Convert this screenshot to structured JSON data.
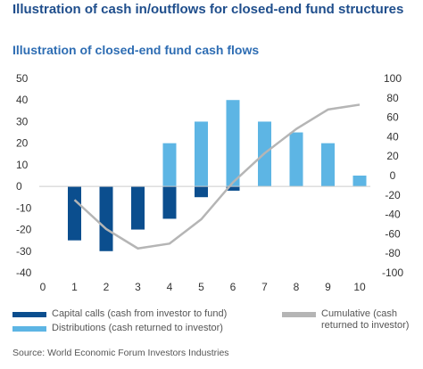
{
  "title": "Illustration of cash in/outflows for closed-end fund structures",
  "subtitle": "Illustration of closed-end fund cash flows",
  "colors": {
    "capital_calls": "#0b4e8e",
    "distributions": "#5db5e4",
    "cumulative": "#b5b5b5",
    "text": "#333333",
    "title": "#1f4e8c",
    "subtitle": "#2e6db3"
  },
  "legend": {
    "capital_calls": "Capital calls (cash from investor to fund)",
    "distributions": "Distributions (cash returned to investor)",
    "cumulative": "Cumulative (cash returned to investor)"
  },
  "source": "Source: World Economic Forum Investors Industries",
  "chart_data": {
    "type": "bar",
    "x": [
      1,
      2,
      3,
      4,
      5,
      6,
      7,
      8,
      9,
      10
    ],
    "x_ticks": [
      "0",
      "1",
      "2",
      "3",
      "4",
      "5",
      "6",
      "7",
      "8",
      "9",
      "10"
    ],
    "xlim": [
      0,
      10
    ],
    "ylim_left": [
      -40,
      50
    ],
    "ylim_right": [
      -100,
      100
    ],
    "left_ticks": [
      50,
      40,
      30,
      20,
      10,
      0,
      -10,
      -20,
      -30,
      -40
    ],
    "right_ticks": [
      100,
      80,
      60,
      40,
      20,
      0,
      -20,
      -40,
      -60,
      -80,
      -100
    ],
    "grid": false,
    "legend_position": "bottom",
    "series": [
      {
        "name": "Capital calls (cash from investor to fund)",
        "type": "bar",
        "axis": "left",
        "values": [
          -25,
          -30,
          -20,
          -15,
          -5,
          -2,
          0,
          0,
          0,
          0
        ]
      },
      {
        "name": "Distributions (cash returned to investor)",
        "type": "bar",
        "axis": "left",
        "values": [
          0,
          0,
          0,
          20,
          30,
          40,
          30,
          25,
          20,
          5
        ]
      },
      {
        "name": "Cumulative (cash returned to investor)",
        "type": "line",
        "axis": "right",
        "values": [
          -25,
          -55,
          -75,
          -70,
          -45,
          -7,
          23,
          48,
          68,
          73
        ]
      }
    ]
  }
}
